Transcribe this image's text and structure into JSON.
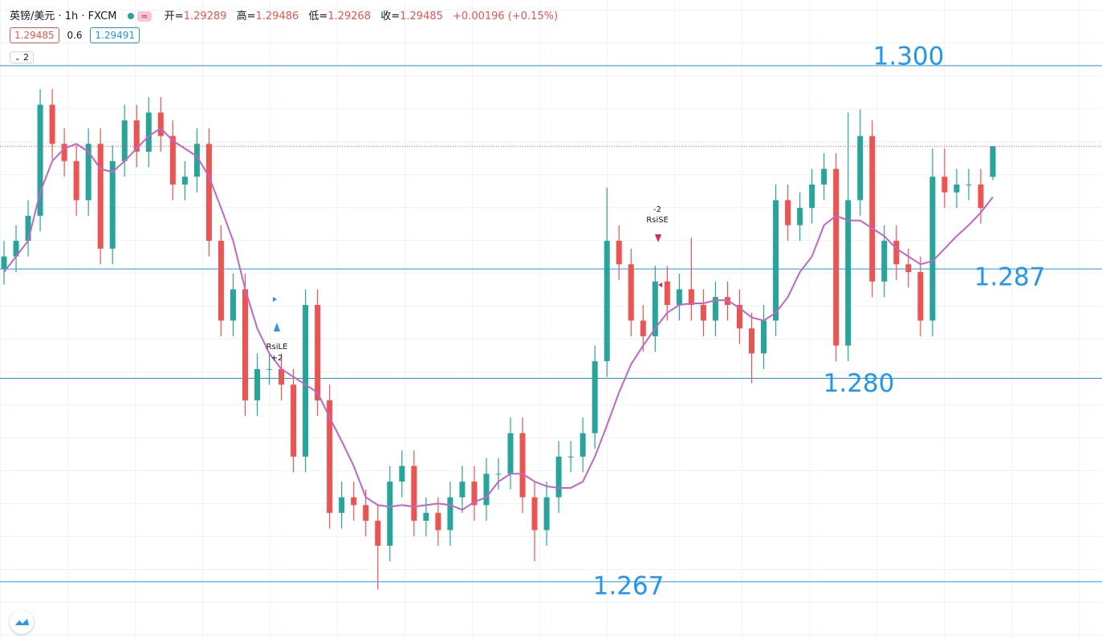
{
  "header": {
    "symbol": "英镑/美元 · 1h · FXCM",
    "ohlc": [
      {
        "label": "开=",
        "value": 1.29289
      },
      {
        "label": "高=",
        "value": 1.29486
      },
      {
        "label": "低=",
        "value": 1.29268
      },
      {
        "label": "收=",
        "value": 1.29485
      }
    ],
    "change": "+0.00196 (+0.15%)",
    "bid": 1.29485,
    "spread": 0.6,
    "ask": 1.29491,
    "indicator_count": 2
  },
  "chart_data": {
    "type": "candlestick",
    "open": [
      1.287,
      1.2878,
      1.2888,
      1.2904,
      1.2975,
      1.295,
      1.2939,
      1.2914,
      1.295,
      1.2883,
      1.2939,
      1.2965,
      1.2945,
      1.297,
      1.2955,
      1.2924,
      1.2929,
      1.295,
      1.2888,
      1.2837,
      1.2857,
      1.2786,
      1.2806,
      1.2806,
      1.2796,
      1.275,
      1.2847,
      1.2786,
      1.2714,
      1.2724,
      1.2719,
      1.2709,
      1.2693,
      1.2734,
      1.2744,
      1.2709,
      1.2714,
      1.2703,
      1.2724,
      1.2734,
      1.2719,
      1.2739,
      1.2739,
      1.2765,
      1.2724,
      1.2703,
      1.2724,
      1.275,
      1.275,
      1.2765,
      1.2811,
      1.2888,
      1.2873,
      1.2837,
      1.2827,
      1.2862,
      1.2847,
      1.2857,
      1.2847,
      1.2837,
      1.2852,
      1.2847,
      1.2832,
      1.2816,
      1.2837,
      1.2914,
      1.2898,
      1.2909,
      1.2924,
      1.2934,
      1.2821,
      1.2914,
      1.2955,
      1.2862,
      1.2888,
      1.2873,
      1.2868,
      1.2837,
      1.2929,
      1.2919,
      1.2924,
      1.2924,
      1.29289
    ],
    "high": [
      1.2888,
      1.2898,
      1.2914,
      1.2985,
      1.2985,
      1.296,
      1.2949,
      1.296,
      1.296,
      1.2949,
      1.2975,
      1.2975,
      1.298,
      1.298,
      1.2965,
      1.2939,
      1.296,
      1.296,
      1.2898,
      1.2867,
      1.2867,
      1.2816,
      1.2816,
      1.2816,
      1.2806,
      1.2857,
      1.2857,
      1.2796,
      1.2734,
      1.2734,
      1.2729,
      1.2719,
      1.2744,
      1.2754,
      1.2754,
      1.2724,
      1.2724,
      1.2734,
      1.2744,
      1.2744,
      1.2749,
      1.2749,
      1.2775,
      1.2775,
      1.2734,
      1.2734,
      1.276,
      1.276,
      1.2775,
      1.2821,
      1.2922,
      1.2898,
      1.2883,
      1.2847,
      1.2872,
      1.2872,
      1.2867,
      1.289,
      1.2857,
      1.2862,
      1.2862,
      1.2857,
      1.2842,
      1.2847,
      1.2924,
      1.2924,
      1.2919,
      1.2934,
      1.2944,
      1.2944,
      1.297,
      1.2972,
      1.2965,
      1.2898,
      1.2898,
      1.2883,
      1.2878,
      1.2947,
      1.2947,
      1.2934,
      1.2934,
      1.2934,
      1.29486
    ],
    "low": [
      1.286,
      1.2868,
      1.2878,
      1.2894,
      1.294,
      1.2929,
      1.2904,
      1.2904,
      1.2873,
      1.2873,
      1.2929,
      1.2935,
      1.2935,
      1.2945,
      1.2914,
      1.2914,
      1.2919,
      1.2878,
      1.2827,
      1.2827,
      1.2776,
      1.2776,
      1.2796,
      1.2786,
      1.274,
      1.274,
      1.2776,
      1.2704,
      1.2704,
      1.2709,
      1.2699,
      1.2665,
      1.2683,
      1.2724,
      1.2699,
      1.2699,
      1.2693,
      1.2693,
      1.2714,
      1.2709,
      1.2709,
      1.2729,
      1.2729,
      1.2714,
      1.2683,
      1.2693,
      1.2714,
      1.274,
      1.274,
      1.2755,
      1.2801,
      1.2863,
      1.2827,
      1.2817,
      1.2817,
      1.2837,
      1.2837,
      1.2837,
      1.2827,
      1.2827,
      1.2837,
      1.2822,
      1.2797,
      1.2806,
      1.2827,
      1.2888,
      1.2888,
      1.2899,
      1.2914,
      1.2811,
      1.2811,
      1.2904,
      1.2852,
      1.2852,
      1.2863,
      1.2858,
      1.2827,
      1.2827,
      1.2909,
      1.2909,
      1.2914,
      1.2899,
      1.29268
    ],
    "close": [
      1.2878,
      1.2888,
      1.2904,
      1.2975,
      1.295,
      1.2939,
      1.2914,
      1.295,
      1.2883,
      1.2939,
      1.2965,
      1.2945,
      1.297,
      1.2955,
      1.2924,
      1.2929,
      1.295,
      1.2888,
      1.2837,
      1.2857,
      1.2786,
      1.2806,
      1.2806,
      1.2796,
      1.275,
      1.2847,
      1.2786,
      1.2714,
      1.2724,
      1.2719,
      1.2709,
      1.2693,
      1.2734,
      1.2744,
      1.2709,
      1.2714,
      1.2703,
      1.2724,
      1.2734,
      1.2719,
      1.2739,
      1.2739,
      1.2765,
      1.2724,
      1.2703,
      1.2724,
      1.275,
      1.275,
      1.2765,
      1.2811,
      1.2888,
      1.2873,
      1.2837,
      1.2827,
      1.2862,
      1.2847,
      1.2857,
      1.2847,
      1.2837,
      1.2852,
      1.2847,
      1.2832,
      1.2816,
      1.2837,
      1.2914,
      1.2898,
      1.2909,
      1.2924,
      1.2934,
      1.2821,
      1.2914,
      1.2955,
      1.2862,
      1.2888,
      1.2873,
      1.2868,
      1.2837,
      1.2929,
      1.2919,
      1.2924,
      1.2924,
      1.2909,
      1.29485
    ],
    "up_color": "#26a69a",
    "down_color": "#ef5350",
    "ma": {
      "color": "#c264c8",
      "values": [
        1.2868,
        1.2878,
        1.2888,
        1.2919,
        1.2939,
        1.2947,
        1.295,
        1.2945,
        1.2934,
        1.2932,
        1.2939,
        1.2947,
        1.2955,
        1.296,
        1.2952,
        1.2947,
        1.2942,
        1.2929,
        1.2909,
        1.2888,
        1.2857,
        1.2832,
        1.2816,
        1.2806,
        1.2801,
        1.2796,
        1.2791,
        1.2775,
        1.276,
        1.2744,
        1.2724,
        1.2719,
        1.2718,
        1.2719,
        1.2718,
        1.2719,
        1.272,
        1.2719,
        1.2716,
        1.2721,
        1.2724,
        1.2734,
        1.2739,
        1.2739,
        1.2734,
        1.2731,
        1.273,
        1.273,
        1.2734,
        1.275,
        1.277,
        1.2791,
        1.2809,
        1.2821,
        1.2832,
        1.2842,
        1.2847,
        1.2848,
        1.2848,
        1.285,
        1.285,
        1.2845,
        1.2839,
        1.2837,
        1.2842,
        1.2852,
        1.2868,
        1.2878,
        1.2898,
        1.2904,
        1.2901,
        1.2901,
        1.2896,
        1.2891,
        1.2883,
        1.2878,
        1.2873,
        1.2875,
        1.2883,
        1.2891,
        1.2898,
        1.2906,
        1.2916
      ]
    },
    "ylim": [
      1.2634,
      1.3042
    ],
    "levels": [
      {
        "value": 1.3,
        "label": "1.300"
      },
      {
        "value": 1.287,
        "label": "1.287"
      },
      {
        "value": 1.28,
        "label": "1.280"
      },
      {
        "value": 1.267,
        "label": "1.267"
      }
    ],
    "level_color": "#2196f3",
    "annotations": [
      {
        "text": "-2"
      },
      {
        "text": "RsiSE"
      },
      {
        "text": "RsiLE"
      },
      {
        "text": "+2"
      }
    ]
  }
}
